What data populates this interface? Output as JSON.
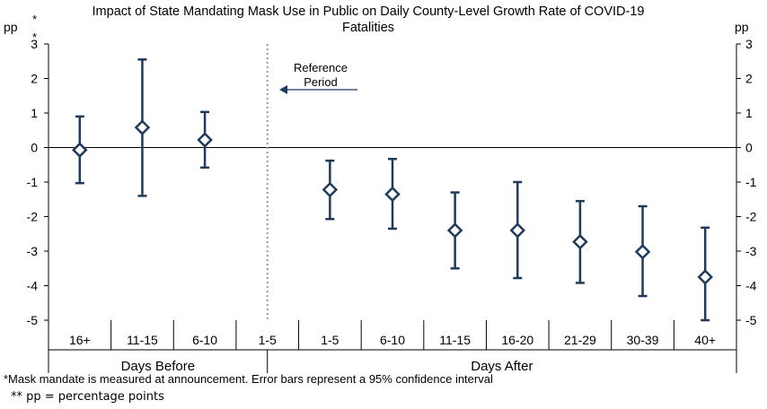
{
  "title": "Impact of State Mandating Mask Use in Public on Daily County-Level Growth Rate of COVID-19 Fatalities",
  "units": {
    "left": "pp",
    "right": "pp",
    "left_marker_1": "*",
    "left_marker_2": "*"
  },
  "annotation": {
    "text_line1": "Reference",
    "text_line2": "Period"
  },
  "groups": {
    "before": "Days Before",
    "after": "Days After"
  },
  "footnotes": {
    "line1": "*Mask mandate is measured at announcement. Error bars represent a 95% confidence interval",
    "line2": "** pp = percentage points"
  },
  "colors": {
    "marker": "#1f3b5c",
    "axis": "#000000",
    "divider": "#999999"
  },
  "chart_data": {
    "type": "scatter",
    "title": "Impact of State Mandating Mask Use in Public on Daily County-Level Growth Rate of COVID-19 Fatalities",
    "ylabel": "pp",
    "ylim": [
      -5,
      3
    ],
    "yticks": [
      3,
      2,
      1,
      0,
      -1,
      -2,
      -3,
      -4,
      -5
    ],
    "categories": [
      "16+",
      "11-15",
      "6-10",
      "1-5",
      "1-5",
      "6-10",
      "11-15",
      "16-20",
      "21-29",
      "30-39",
      "40+"
    ],
    "group_labels": [
      "Days Before",
      "Days After"
    ],
    "reference_index": 3,
    "estimates": [
      -0.07,
      0.58,
      0.22,
      null,
      -1.22,
      -1.35,
      -2.4,
      -2.4,
      -2.73,
      -3.02,
      -3.75
    ],
    "ci_low": [
      -1.03,
      -1.4,
      -0.58,
      null,
      -2.07,
      -2.35,
      -3.5,
      -3.78,
      -3.92,
      -4.3,
      -5.0
    ],
    "ci_high": [
      0.9,
      2.55,
      1.03,
      null,
      -0.38,
      -0.33,
      -1.3,
      -1.0,
      -1.55,
      -1.7,
      -2.32
    ],
    "grid": false,
    "legend": "none"
  }
}
